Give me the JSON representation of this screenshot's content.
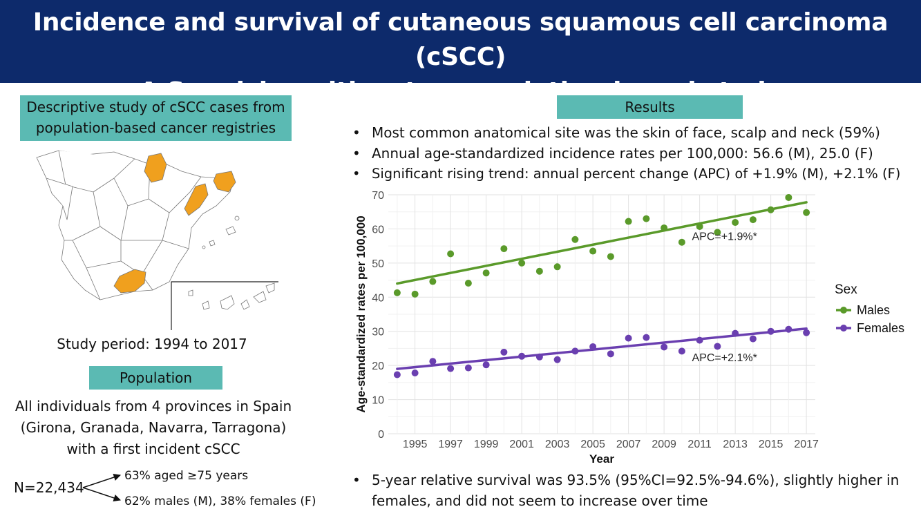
{
  "title": {
    "line1": "Incidence and survival of cutaneous squamous cell carcinoma (cSCC)",
    "line2": "A Spanish multicenter population-based study"
  },
  "left": {
    "descriptive_box": [
      "Descriptive study of cSCC cases from",
      "population-based cancer registries"
    ],
    "study_period": "Study period: 1994 to 2017",
    "population_label": "Population",
    "population_text": [
      "All individuals from 4 provinces in Spain",
      "(Girona, Granada, Navarra, Tarragona)",
      "with a first incident cSCC"
    ],
    "n_total": "N=22,434",
    "split_top": "63% aged ≥75 years",
    "split_bottom": "62% males (M), 38% females (F)"
  },
  "right": {
    "results_label": "Results",
    "bullets": [
      "Most common anatomical site was the skin of face, scalp and neck (59%)",
      "Annual age-standardized incidence rates per 100,000: 56.6 (M), 25.0 (F)",
      "Significant rising trend: annual percent change (APC) of +1.9% (M), +2.1% (F)"
    ],
    "bottom_bullet": [
      "5-year relative survival was 93.5% (95%CI=92.5%-94.6%), slightly higher in",
      "females, and did not seem to increase over time"
    ]
  },
  "colors": {
    "header": "#0d2a6b",
    "teal": "#5bbab3",
    "highlight_province": "#f0a01e",
    "males": "#5a9a2a",
    "females": "#6a3fb0"
  },
  "chart_data": {
    "type": "scatter",
    "xlabel": "Year",
    "ylabel": "Age-standardized rates per 100,000",
    "xlim": [
      1993.5,
      2017.5
    ],
    "ylim": [
      0,
      70
    ],
    "yticks": [
      0,
      10,
      20,
      30,
      40,
      50,
      60,
      70
    ],
    "xticks": [
      1995,
      1997,
      1999,
      2001,
      2003,
      2005,
      2007,
      2009,
      2011,
      2013,
      2015,
      2017
    ],
    "grid": true,
    "legend_title": "Sex",
    "legend_position": "right",
    "x": [
      1994,
      1995,
      1996,
      1997,
      1998,
      1999,
      2000,
      2001,
      2002,
      2003,
      2004,
      2005,
      2006,
      2007,
      2008,
      2009,
      2010,
      2011,
      2012,
      2013,
      2014,
      2015,
      2016,
      2017
    ],
    "series": [
      {
        "name": "Males",
        "values": [
          41.3,
          40.9,
          44.6,
          52.7,
          44.1,
          47.1,
          54.2,
          50.0,
          47.6,
          48.9,
          56.9,
          53.5,
          51.9,
          62.2,
          63.0,
          60.3,
          56.1,
          60.7,
          59.0,
          61.9,
          62.7,
          65.6,
          69.2,
          64.8
        ],
        "trend": [
          44.0,
          67.8
        ],
        "annotation": "APC=+1.9%*"
      },
      {
        "name": "Females",
        "values": [
          17.3,
          17.8,
          21.2,
          19.1,
          19.3,
          20.2,
          23.9,
          22.7,
          22.5,
          21.7,
          24.2,
          25.5,
          23.4,
          28.0,
          28.2,
          25.4,
          24.2,
          27.4,
          25.6,
          29.4,
          27.8,
          30.0,
          30.6,
          29.6
        ],
        "trend": [
          19.0,
          30.8
        ],
        "annotation": "APC=+2.1%*"
      }
    ]
  }
}
